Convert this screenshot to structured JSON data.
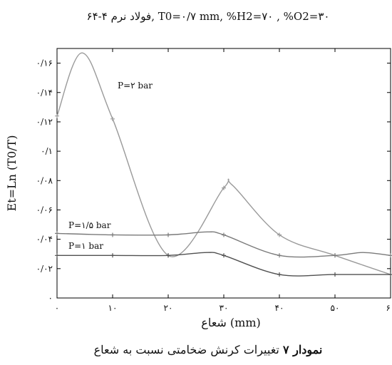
{
  "chart_data": {
    "type": "line",
    "title": "فولاد نرم ۴-۶۴, T0=۰/۷ mm, %H2=۷۰ , %O2=۳۰",
    "xlabel": "شعاع (mm)",
    "ylabel": "Et=Ln (T0/T)",
    "xlim": [
      0,
      60
    ],
    "ylim": [
      0,
      0.17
    ],
    "grid": false,
    "x_ticks": [
      0,
      10,
      20,
      30,
      40,
      50,
      60
    ],
    "x_tick_labels": [
      "۰",
      "۱۰",
      "۲۰",
      "۳۰",
      "۴۰",
      "۵۰",
      "۶۰"
    ],
    "y_ticks": [
      0,
      0.02,
      0.04,
      0.06,
      0.08,
      0.1,
      0.12,
      0.14,
      0.16
    ],
    "y_tick_labels": [
      "۰",
      "۰/۰۲",
      "۰/۰۴",
      "۰/۰۶",
      "۰/۰۸",
      "۰/۱",
      "۰/۱۲",
      "۰/۱۴",
      "۰/۱۶"
    ],
    "series": [
      {
        "name": "P=۲ bar",
        "color": "#9a9a9a",
        "x": [
          0,
          4.5,
          10,
          20,
          30,
          31.5,
          40,
          50,
          60
        ],
        "y": [
          0.124,
          0.167,
          0.122,
          0.029,
          0.075,
          0.077,
          0.043,
          0.029,
          0.016
        ],
        "markers_x": [
          0,
          10,
          20,
          30,
          40,
          50,
          60
        ],
        "markers_y": [
          0.124,
          0.122,
          0.029,
          0.075,
          0.043,
          0.029,
          0.016
        ]
      },
      {
        "name": "P=۱/۵ bar",
        "color": "#7a7a7a",
        "x": [
          0,
          10,
          20,
          27,
          30,
          40,
          50,
          55,
          60
        ],
        "y": [
          0.044,
          0.043,
          0.043,
          0.045,
          0.043,
          0.029,
          0.029,
          0.031,
          0.029
        ],
        "markers_x": [
          0,
          10,
          20,
          30,
          40,
          50,
          60
        ],
        "markers_y": [
          0.044,
          0.043,
          0.043,
          0.043,
          0.029,
          0.029,
          0.029
        ]
      },
      {
        "name": "P=۱ bar",
        "color": "#505050",
        "x": [
          0,
          10,
          20,
          27,
          30,
          40,
          50,
          60
        ],
        "y": [
          0.029,
          0.029,
          0.029,
          0.031,
          0.029,
          0.016,
          0.016,
          0.016
        ],
        "markers_x": [
          0,
          10,
          20,
          30,
          40,
          50,
          60
        ],
        "markers_y": [
          0.029,
          0.029,
          0.029,
          0.029,
          0.016,
          0.016,
          0.016
        ]
      }
    ]
  },
  "caption": {
    "bold": "نمودار ۷",
    "rest": " تغییرات کرنش ضخامتی نسبت به شعاع"
  }
}
